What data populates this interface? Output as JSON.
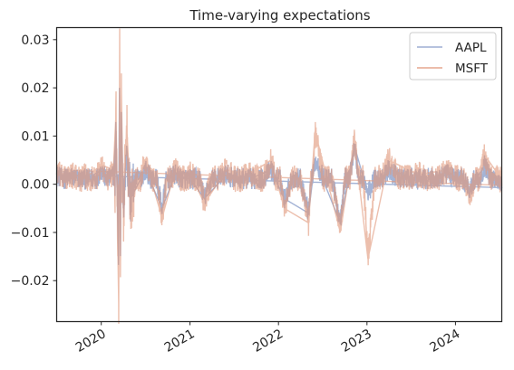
{
  "chart_data": {
    "type": "line",
    "title": "Time-varying expectations",
    "xlabel": "",
    "ylabel": "",
    "x_range": [
      "2019-07-01",
      "2024-07-10"
    ],
    "ylim": [
      -0.0285,
      0.0325
    ],
    "yticks": [
      -0.02,
      -0.01,
      0.0,
      0.01,
      0.02,
      0.03
    ],
    "ytick_labels": [
      "−0.02",
      "−0.01",
      "0.00",
      "0.01",
      "0.02",
      "0.03"
    ],
    "xticks": [
      "2020-01-01",
      "2021-01-01",
      "2022-01-01",
      "2023-01-01",
      "2024-01-01"
    ],
    "xtick_labels": [
      "2020",
      "2021",
      "2022",
      "2023",
      "2024"
    ],
    "grid": false,
    "legend": "upper right",
    "series": [
      {
        "name": "AAPL",
        "color": "#8da0cb",
        "points": [
          [
            "2019-07-01",
            0.002
          ],
          [
            "2019-09-01",
            0.0015
          ],
          [
            "2019-11-01",
            0.001
          ],
          [
            "2020-01-02",
            0.003
          ],
          [
            "2020-02-20",
            0.002
          ],
          [
            "2020-03-02",
            0.011
          ],
          [
            "2020-03-09",
            -0.008
          ],
          [
            "2020-03-12",
            -0.015
          ],
          [
            "2020-03-16",
            0.02
          ],
          [
            "2020-03-20",
            -0.01
          ],
          [
            "2020-03-24",
            0.015
          ],
          [
            "2020-04-01",
            -0.005
          ],
          [
            "2020-04-15",
            0.008
          ],
          [
            "2020-05-01",
            -0.003
          ],
          [
            "2020-07-01",
            0.003
          ],
          [
            "2020-09-08",
            -0.005
          ],
          [
            "2020-11-01",
            0.002
          ],
          [
            "2021-01-05",
            0.001
          ],
          [
            "2021-03-01",
            -0.003
          ],
          [
            "2021-06-01",
            0.002
          ],
          [
            "2021-09-01",
            0.001
          ],
          [
            "2021-12-01",
            0.003
          ],
          [
            "2022-01-25",
            -0.003
          ],
          [
            "2022-05-05",
            -0.006
          ],
          [
            "2022-06-01",
            0.005
          ],
          [
            "2022-09-13",
            -0.008
          ],
          [
            "2022-11-10",
            0.008
          ],
          [
            "2023-01-05",
            -0.002
          ],
          [
            "2023-04-01",
            0.003
          ],
          [
            "2023-08-01",
            0.001
          ],
          [
            "2023-12-01",
            0.002
          ],
          [
            "2024-03-01",
            -0.001
          ],
          [
            "2024-05-01",
            0.004
          ],
          [
            "2024-07-10",
            0.0
          ]
        ]
      },
      {
        "name": "MSFT",
        "color": "#e1977a",
        "points": [
          [
            "2019-07-01",
            0.003
          ],
          [
            "2019-09-01",
            0.002
          ],
          [
            "2019-11-01",
            0.0015
          ],
          [
            "2020-01-02",
            0.004
          ],
          [
            "2020-02-20",
            0.003
          ],
          [
            "2020-03-02",
            0.015
          ],
          [
            "2020-03-09",
            -0.012
          ],
          [
            "2020-03-13",
            -0.0255
          ],
          [
            "2020-03-17",
            0.0297
          ],
          [
            "2020-03-20",
            -0.015
          ],
          [
            "2020-03-24",
            0.02
          ],
          [
            "2020-04-01",
            -0.007
          ],
          [
            "2020-04-15",
            0.012
          ],
          [
            "2020-05-01",
            -0.004
          ],
          [
            "2020-07-01",
            0.005
          ],
          [
            "2020-09-08",
            -0.007
          ],
          [
            "2020-11-01",
            0.003
          ],
          [
            "2021-01-05",
            0.002
          ],
          [
            "2021-03-01",
            -0.004
          ],
          [
            "2021-06-01",
            0.003
          ],
          [
            "2021-09-01",
            0.002
          ],
          [
            "2021-12-01",
            0.005
          ],
          [
            "2022-01-25",
            -0.005
          ],
          [
            "2022-05-05",
            -0.008
          ],
          [
            "2022-06-01",
            0.011
          ],
          [
            "2022-09-13",
            -0.01
          ],
          [
            "2022-11-10",
            0.009
          ],
          [
            "2023-01-05",
            -0.0155
          ],
          [
            "2023-04-01",
            0.005
          ],
          [
            "2023-08-01",
            0.002
          ],
          [
            "2023-12-01",
            0.003
          ],
          [
            "2024-03-01",
            -0.002
          ],
          [
            "2024-05-01",
            0.006
          ],
          [
            "2024-07-10",
            0.001
          ]
        ]
      }
    ]
  }
}
